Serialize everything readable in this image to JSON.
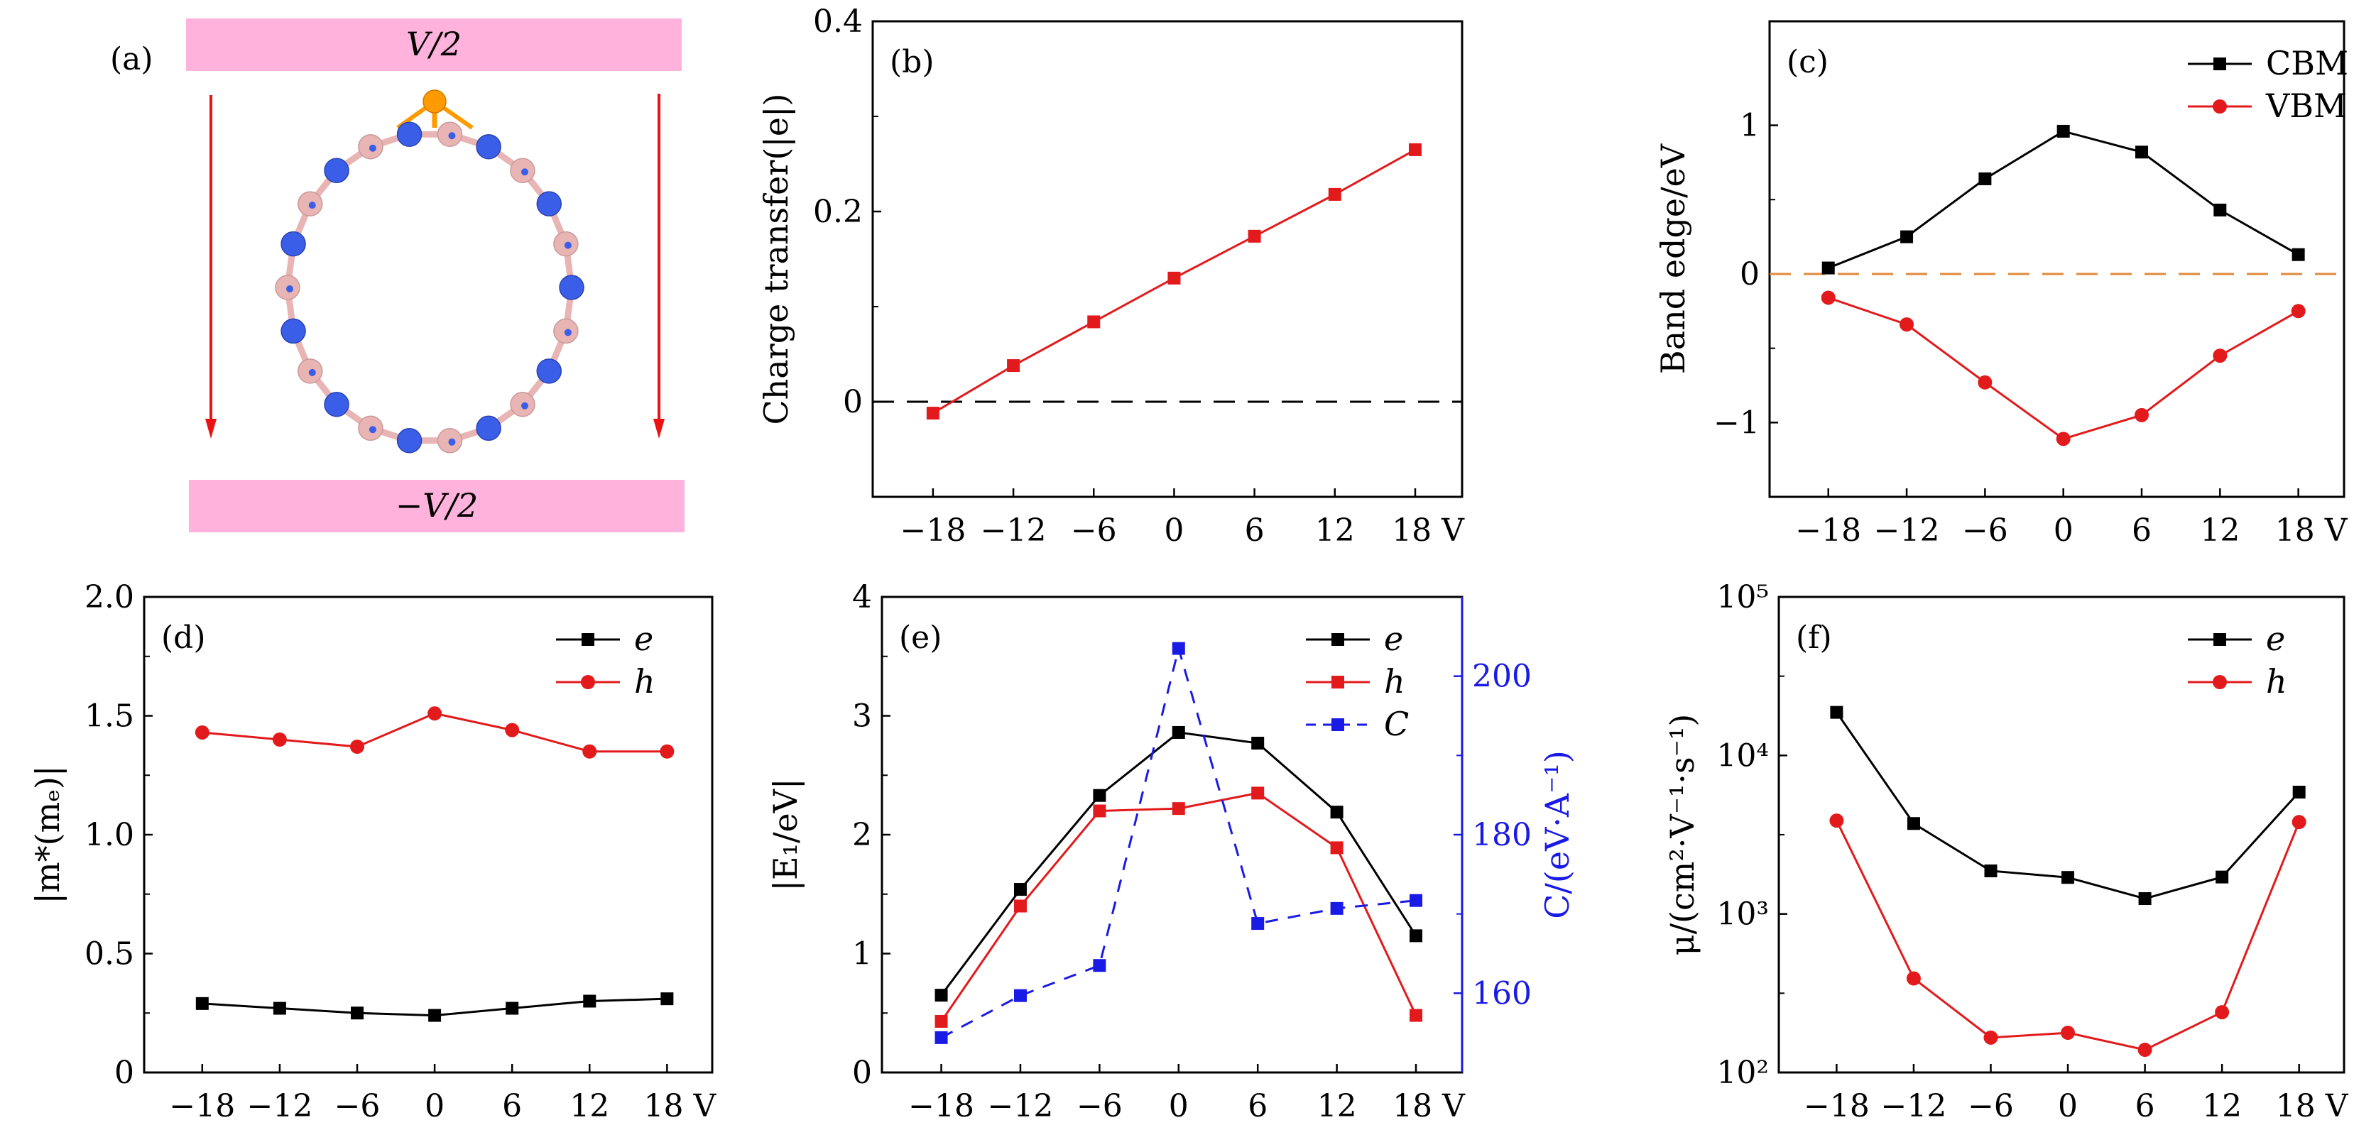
{
  "panel_a": {
    "label": "(a)",
    "top_plate": "V/2",
    "bottom_plate": "−V/2",
    "colors": {
      "plate": "#ffb3dc",
      "arrow": "#ee1111",
      "atom_n": "#3a5ee8",
      "atom_b": "#e8b4b4",
      "atom_dopant": "#ff9a00"
    }
  },
  "chart_data": [
    {
      "id": "b",
      "type": "line",
      "panel_label": "(b)",
      "title": "",
      "xlabel": "",
      "ylabel": "Charge transfer(|e|)",
      "x": [
        -18,
        -12,
        -6,
        0,
        6,
        12,
        18
      ],
      "x_tick_labels": [
        "−18",
        "−12",
        "−6",
        "0",
        "6",
        "12",
        "18 V"
      ],
      "ylim": [
        -0.1,
        0.4
      ],
      "y_ticks": [
        0,
        0.2,
        0.4
      ],
      "y_tick_labels": [
        "0",
        "0.2",
        "0.4"
      ],
      "reference_line": {
        "y": 0,
        "style": "dashed",
        "color": "#000000"
      },
      "series": [
        {
          "name": "Charge transfer",
          "color": "#e31a1c",
          "marker": "square",
          "values": [
            -0.012,
            0.038,
            0.084,
            0.13,
            0.174,
            0.218,
            0.265
          ]
        }
      ],
      "legend": null
    },
    {
      "id": "c",
      "type": "line",
      "panel_label": "(c)",
      "ylabel": "Band edge/eV",
      "x": [
        -18,
        -12,
        -6,
        0,
        6,
        12,
        18
      ],
      "x_tick_labels": [
        "−18",
        "−12",
        "−6",
        "0",
        "6",
        "12",
        "18 V"
      ],
      "ylim": [
        -1.5,
        1.7
      ],
      "y_ticks": [
        -1,
        0,
        1
      ],
      "y_tick_labels": [
        "−1",
        "0",
        "1"
      ],
      "reference_line": {
        "y": 0,
        "style": "dashed",
        "color": "#e08a3a"
      },
      "series": [
        {
          "name": "CBM",
          "color": "#000000",
          "marker": "square",
          "values": [
            0.04,
            0.25,
            0.64,
            0.96,
            0.82,
            0.43,
            0.13
          ]
        },
        {
          "name": "VBM",
          "color": "#e31a1c",
          "marker": "circle",
          "values": [
            -0.16,
            -0.34,
            -0.73,
            -1.11,
            -0.95,
            -0.55,
            -0.25
          ]
        }
      ],
      "legend": "top-right"
    },
    {
      "id": "d",
      "type": "line",
      "panel_label": "(d)",
      "ylabel": "|m*(mₑ)|",
      "x": [
        -18,
        -12,
        -6,
        0,
        6,
        12,
        18
      ],
      "x_tick_labels": [
        "−18",
        "−12",
        "−6",
        "0",
        "6",
        "12",
        "18 V"
      ],
      "ylim": [
        0,
        2.0
      ],
      "y_ticks": [
        0,
        0.5,
        1.0,
        1.5,
        2.0
      ],
      "y_tick_labels": [
        "0",
        "0.5",
        "1.0",
        "1.5",
        "2.0"
      ],
      "series": [
        {
          "name": "e",
          "color": "#000000",
          "marker": "square",
          "values": [
            0.29,
            0.27,
            0.25,
            0.24,
            0.27,
            0.3,
            0.31
          ]
        },
        {
          "name": "h",
          "color": "#e31a1c",
          "marker": "circle",
          "values": [
            1.43,
            1.4,
            1.37,
            1.51,
            1.44,
            1.35,
            1.35
          ]
        }
      ],
      "legend": "top-right"
    },
    {
      "id": "e",
      "type": "line",
      "panel_label": "(e)",
      "ylabel": "|E₁/eV|",
      "y2label": "C/(eV·A⁻¹)",
      "x": [
        -18,
        -12,
        -6,
        0,
        6,
        12,
        18
      ],
      "x_tick_labels": [
        "−18",
        "−12",
        "−6",
        "0",
        "6",
        "12",
        "18 V"
      ],
      "ylim": [
        0,
        4
      ],
      "y_ticks": [
        0,
        1,
        2,
        3,
        4
      ],
      "y_tick_labels": [
        "0",
        "1",
        "2",
        "3",
        "4"
      ],
      "y2lim": [
        150,
        210
      ],
      "y2_ticks": [
        160,
        180,
        200
      ],
      "y2_tick_labels": [
        "160",
        "180",
        "200"
      ],
      "y2_color": "#1a1ae6",
      "series": [
        {
          "name": "e",
          "color": "#000000",
          "marker": "square",
          "axis": "left",
          "values": [
            0.65,
            1.54,
            2.33,
            2.86,
            2.77,
            2.19,
            1.15
          ]
        },
        {
          "name": "h",
          "color": "#e31a1c",
          "marker": "square",
          "axis": "left",
          "values": [
            0.43,
            1.4,
            2.2,
            2.22,
            2.35,
            1.89,
            0.48
          ]
        },
        {
          "name": "C",
          "color": "#1a1ae6",
          "marker": "square",
          "axis": "right",
          "dashed": true,
          "values": [
            154.4,
            159.7,
            163.5,
            203.5,
            168.8,
            170.7,
            171.7
          ]
        }
      ],
      "legend": "top-right"
    },
    {
      "id": "f",
      "type": "line",
      "panel_label": "(f)",
      "ylabel": "μ/(cm²·V⁻¹·s⁻¹)",
      "yscale": "log",
      "x": [
        -18,
        -12,
        -6,
        0,
        6,
        12,
        18
      ],
      "x_tick_labels": [
        "−18",
        "−12",
        "−6",
        "0",
        "6",
        "12",
        "18 V"
      ],
      "ylim": [
        100,
        100000
      ],
      "y_ticks": [
        100,
        1000,
        10000,
        100000
      ],
      "y_tick_labels": [
        "10²",
        "10³",
        "10⁴",
        "10⁵"
      ],
      "series": [
        {
          "name": "e",
          "color": "#000000",
          "marker": "square",
          "values": [
            18700,
            3720,
            1870,
            1700,
            1250,
            1710,
            5870
          ]
        },
        {
          "name": "h",
          "color": "#e31a1c",
          "marker": "circle",
          "values": [
            3880,
            392,
            166,
            178,
            139,
            240,
            3800
          ]
        }
      ],
      "legend": "top-right"
    }
  ]
}
